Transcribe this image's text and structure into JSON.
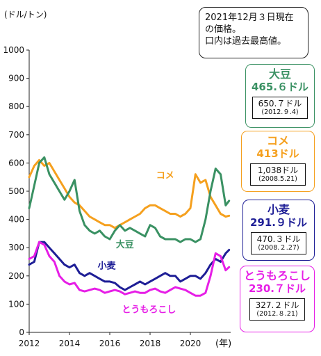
{
  "note": {
    "lines": [
      "2021年12月３日現在",
      "の価格。",
      "口内は過去最高値。"
    ]
  },
  "panels": [
    {
      "name": "大豆",
      "price": "465.６ドル",
      "record_value": "650.７ドル",
      "record_date": "(2012.９.4)",
      "color": "#3a9163"
    },
    {
      "name": "コメ",
      "price": "413ドル",
      "record_value": "1,038ドル",
      "record_date": "(2008.5.21)",
      "color": "#f5a01e"
    },
    {
      "name": "小麦",
      "price": "291.９ドル",
      "record_value": "470.３ドル",
      "record_date": "(2008.２.27)",
      "color": "#1e1e96"
    },
    {
      "name": "とうもろこし",
      "price": "230.７ドル",
      "record_value": "327.２ドル",
      "record_date": "(2012.８.21)",
      "color": "#e61ee6"
    }
  ],
  "chart_data": {
    "type": "line",
    "ylabel": "(ドル/トン)",
    "xlabel": "(年)",
    "ylim": [
      0,
      1000
    ],
    "xlim": [
      2012,
      2022
    ],
    "yticks": [
      "0",
      "100",
      "200",
      "300",
      "400",
      "500",
      "600",
      "700",
      "800",
      "900",
      "1000"
    ],
    "xticks": [
      "2012",
      "2014",
      "2016",
      "2018",
      "2020"
    ],
    "grid": false,
    "series": [
      {
        "name": "コメ",
        "color": "#f5a01e",
        "x": [
          2012.0,
          2012.25,
          2012.5,
          2012.75,
          2013.0,
          2013.25,
          2013.5,
          2013.75,
          2014.0,
          2014.25,
          2014.5,
          2014.75,
          2015.0,
          2015.25,
          2015.5,
          2015.75,
          2016.0,
          2016.25,
          2016.5,
          2016.75,
          2017.0,
          2017.25,
          2017.5,
          2017.75,
          2018.0,
          2018.25,
          2018.5,
          2018.75,
          2019.0,
          2019.25,
          2019.5,
          2019.75,
          2020.0,
          2020.25,
          2020.5,
          2020.75,
          2021.0,
          2021.25,
          2021.5,
          2021.75,
          2021.92
        ],
        "y": [
          550,
          590,
          610,
          590,
          600,
          570,
          540,
          510,
          480,
          460,
          450,
          430,
          410,
          400,
          390,
          380,
          380,
          370,
          380,
          390,
          400,
          410,
          420,
          440,
          450,
          450,
          440,
          430,
          420,
          420,
          410,
          420,
          440,
          560,
          530,
          540,
          480,
          450,
          420,
          410,
          413
        ]
      },
      {
        "name": "大豆",
        "color": "#3a9163",
        "x": [
          2012.0,
          2012.25,
          2012.5,
          2012.75,
          2013.0,
          2013.25,
          2013.5,
          2013.75,
          2014.0,
          2014.25,
          2014.5,
          2014.75,
          2015.0,
          2015.25,
          2015.5,
          2015.75,
          2016.0,
          2016.25,
          2016.5,
          2016.75,
          2017.0,
          2017.25,
          2017.5,
          2017.75,
          2018.0,
          2018.25,
          2018.5,
          2018.75,
          2019.0,
          2019.25,
          2019.5,
          2019.75,
          2020.0,
          2020.25,
          2020.5,
          2020.75,
          2021.0,
          2021.25,
          2021.5,
          2021.75,
          2021.92
        ],
        "y": [
          440,
          520,
          600,
          620,
          560,
          530,
          500,
          470,
          500,
          540,
          430,
          380,
          360,
          350,
          360,
          340,
          330,
          360,
          380,
          360,
          370,
          360,
          350,
          340,
          380,
          370,
          340,
          330,
          330,
          330,
          320,
          330,
          330,
          320,
          330,
          400,
          500,
          580,
          560,
          450,
          466
        ]
      },
      {
        "name": "小麦",
        "color": "#1e1e96",
        "x": [
          2012.0,
          2012.25,
          2012.5,
          2012.75,
          2013.0,
          2013.25,
          2013.5,
          2013.75,
          2014.0,
          2014.25,
          2014.5,
          2014.75,
          2015.0,
          2015.25,
          2015.5,
          2015.75,
          2016.0,
          2016.25,
          2016.5,
          2016.75,
          2017.0,
          2017.25,
          2017.5,
          2017.75,
          2018.0,
          2018.25,
          2018.5,
          2018.75,
          2019.0,
          2019.25,
          2019.5,
          2019.75,
          2020.0,
          2020.25,
          2020.5,
          2020.75,
          2021.0,
          2021.25,
          2021.5,
          2021.75,
          2021.92
        ],
        "y": [
          240,
          250,
          320,
          320,
          300,
          280,
          260,
          240,
          230,
          240,
          210,
          200,
          210,
          200,
          190,
          180,
          180,
          175,
          160,
          150,
          160,
          170,
          180,
          170,
          180,
          190,
          200,
          210,
          200,
          200,
          180,
          190,
          200,
          200,
          190,
          210,
          240,
          260,
          250,
          280,
          292
        ]
      },
      {
        "name": "とうもろこし",
        "color": "#e61ee6",
        "x": [
          2012.0,
          2012.25,
          2012.5,
          2012.75,
          2013.0,
          2013.25,
          2013.5,
          2013.75,
          2014.0,
          2014.25,
          2014.5,
          2014.75,
          2015.0,
          2015.25,
          2015.5,
          2015.75,
          2016.0,
          2016.25,
          2016.5,
          2016.75,
          2017.0,
          2017.25,
          2017.5,
          2017.75,
          2018.0,
          2018.25,
          2018.5,
          2018.75,
          2019.0,
          2019.25,
          2019.5,
          2019.75,
          2020.0,
          2020.25,
          2020.5,
          2020.75,
          2021.0,
          2021.25,
          2021.5,
          2021.75,
          2021.92
        ],
        "y": [
          260,
          270,
          320,
          310,
          270,
          250,
          200,
          180,
          170,
          175,
          150,
          145,
          150,
          155,
          150,
          140,
          145,
          150,
          145,
          135,
          140,
          145,
          140,
          140,
          150,
          155,
          145,
          140,
          150,
          160,
          155,
          150,
          140,
          130,
          130,
          140,
          200,
          280,
          270,
          220,
          231
        ]
      }
    ],
    "series_labels": [
      {
        "text": "コメ",
        "x": 2018.3,
        "y": 545,
        "color": "#f5a01e"
      },
      {
        "text": "大豆",
        "x": 2016.3,
        "y": 300,
        "color": "#3a9163"
      },
      {
        "text": "小麦",
        "x": 2015.4,
        "y": 225,
        "color": "#1e1e96"
      },
      {
        "text": "とうもろこし",
        "x": 2016.6,
        "y": 70,
        "color": "#e61ee6"
      }
    ]
  }
}
